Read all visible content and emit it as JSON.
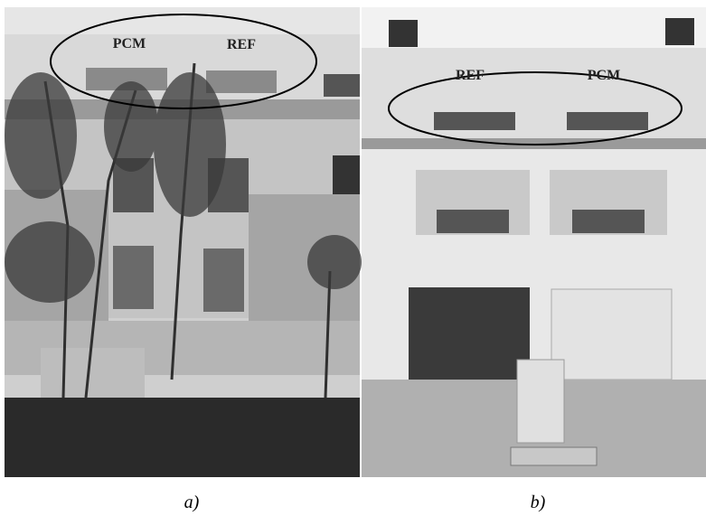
{
  "panels": [
    {
      "labels": [
        "PCM",
        "REF"
      ],
      "caption": "a)"
    },
    {
      "labels": [
        "REF",
        "PCM"
      ],
      "caption": "b)"
    }
  ]
}
